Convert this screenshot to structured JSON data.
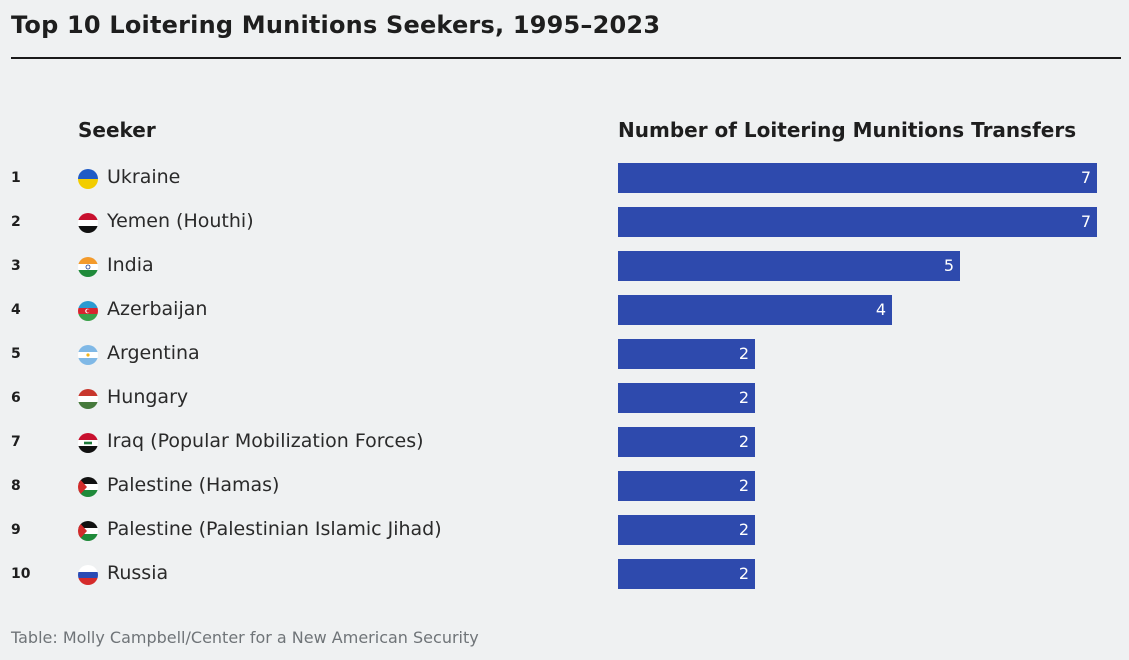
{
  "title": "Top 10 Loitering Munitions Seekers, 1995–2023",
  "source": "Table: Molly Campbell/Center for a New American Security",
  "colors": {
    "bar": "#2e4aad",
    "background": "#eff1f2",
    "rule": "#1a1a1a"
  },
  "chart_data": {
    "type": "bar",
    "orientation": "horizontal",
    "title": "Top 10 Loitering Munitions Seekers, 1995–2023",
    "category_header": "Seeker",
    "value_header": "Number of Loitering Munitions Transfers",
    "xlim": [
      0,
      7
    ],
    "rows": [
      {
        "rank": "1",
        "name": "Ukraine",
        "value": 7,
        "flag": "ukraine-flag-icon"
      },
      {
        "rank": "2",
        "name": "Yemen (Houthi)",
        "value": 7,
        "flag": "yemen-flag-icon"
      },
      {
        "rank": "3",
        "name": "India",
        "value": 5,
        "flag": "india-flag-icon"
      },
      {
        "rank": "4",
        "name": "Azerbaijan",
        "value": 4,
        "flag": "azerbaijan-flag-icon"
      },
      {
        "rank": "5",
        "name": "Argentina",
        "value": 2,
        "flag": "argentina-flag-icon"
      },
      {
        "rank": "6",
        "name": "Hungary",
        "value": 2,
        "flag": "hungary-flag-icon"
      },
      {
        "rank": "7",
        "name": "Iraq (Popular Mobilization Forces)",
        "value": 2,
        "flag": "iraq-flag-icon"
      },
      {
        "rank": "8",
        "name": "Palestine (Hamas)",
        "value": 2,
        "flag": "palestine-flag-icon"
      },
      {
        "rank": "9",
        "name": "Palestine (Palestinian Islamic Jihad)",
        "value": 2,
        "flag": "palestine-flag-icon"
      },
      {
        "rank": "10",
        "name": "Russia",
        "value": 2,
        "flag": "russia-flag-icon"
      }
    ]
  }
}
